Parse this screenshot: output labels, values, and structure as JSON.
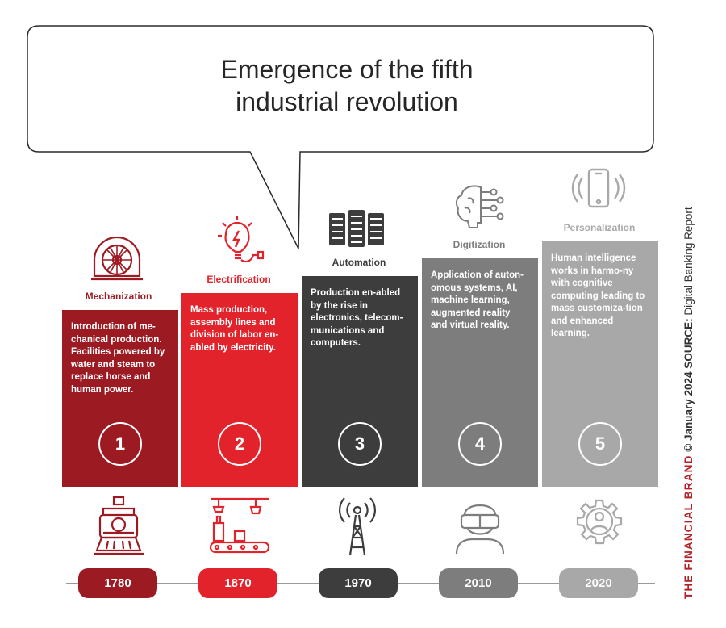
{
  "title_line1": "Emergence of the fifth",
  "title_line2": "industrial revolution",
  "colors": {
    "era1": "#9c1b22",
    "era2": "#e3232b",
    "era3": "#3d3d3d",
    "era4": "#7d7d7d",
    "era5": "#a8a8a8"
  },
  "eras": [
    {
      "label": "Mechanization",
      "number": "1",
      "year": "1780",
      "description": "Introduction of me-chanical production. Facilities powered by water and steam to replace horse and human power.",
      "top_icon": "turbine-icon",
      "bottom_icon": "steam-locomotive-icon"
    },
    {
      "label": "Electrification",
      "number": "2",
      "year": "1870",
      "description": "Mass production, assembly lines and division of labor en-abled by electricity.",
      "top_icon": "light-bulb-icon",
      "bottom_icon": "assembly-line-icon"
    },
    {
      "label": "Automation",
      "number": "3",
      "year": "1970",
      "description": "Production en-abled by the rise in electronics, telecom-munications and computers.",
      "top_icon": "server-rack-icon",
      "bottom_icon": "radio-tower-icon"
    },
    {
      "label": "Digitization",
      "number": "4",
      "year": "2010",
      "description": "Application of auton-omous systems, AI, machine learning, augmented reality and virtual reality.",
      "top_icon": "ai-brain-icon",
      "bottom_icon": "vr-headset-person-icon"
    },
    {
      "label": "Personalization",
      "number": "5",
      "year": "2020",
      "description": "Human intelligence works in harmo-ny with cognitive computing leading to mass customiza-tion and enhanced learning.",
      "top_icon": "smartphone-icon",
      "bottom_icon": "gear-person-icon"
    }
  ],
  "credit": {
    "brand": "THE FINANCIAL BRAND",
    "rest": " © January 2024 ",
    "source_label": "SOURCE:",
    "source": " Digital Banking Report"
  }
}
